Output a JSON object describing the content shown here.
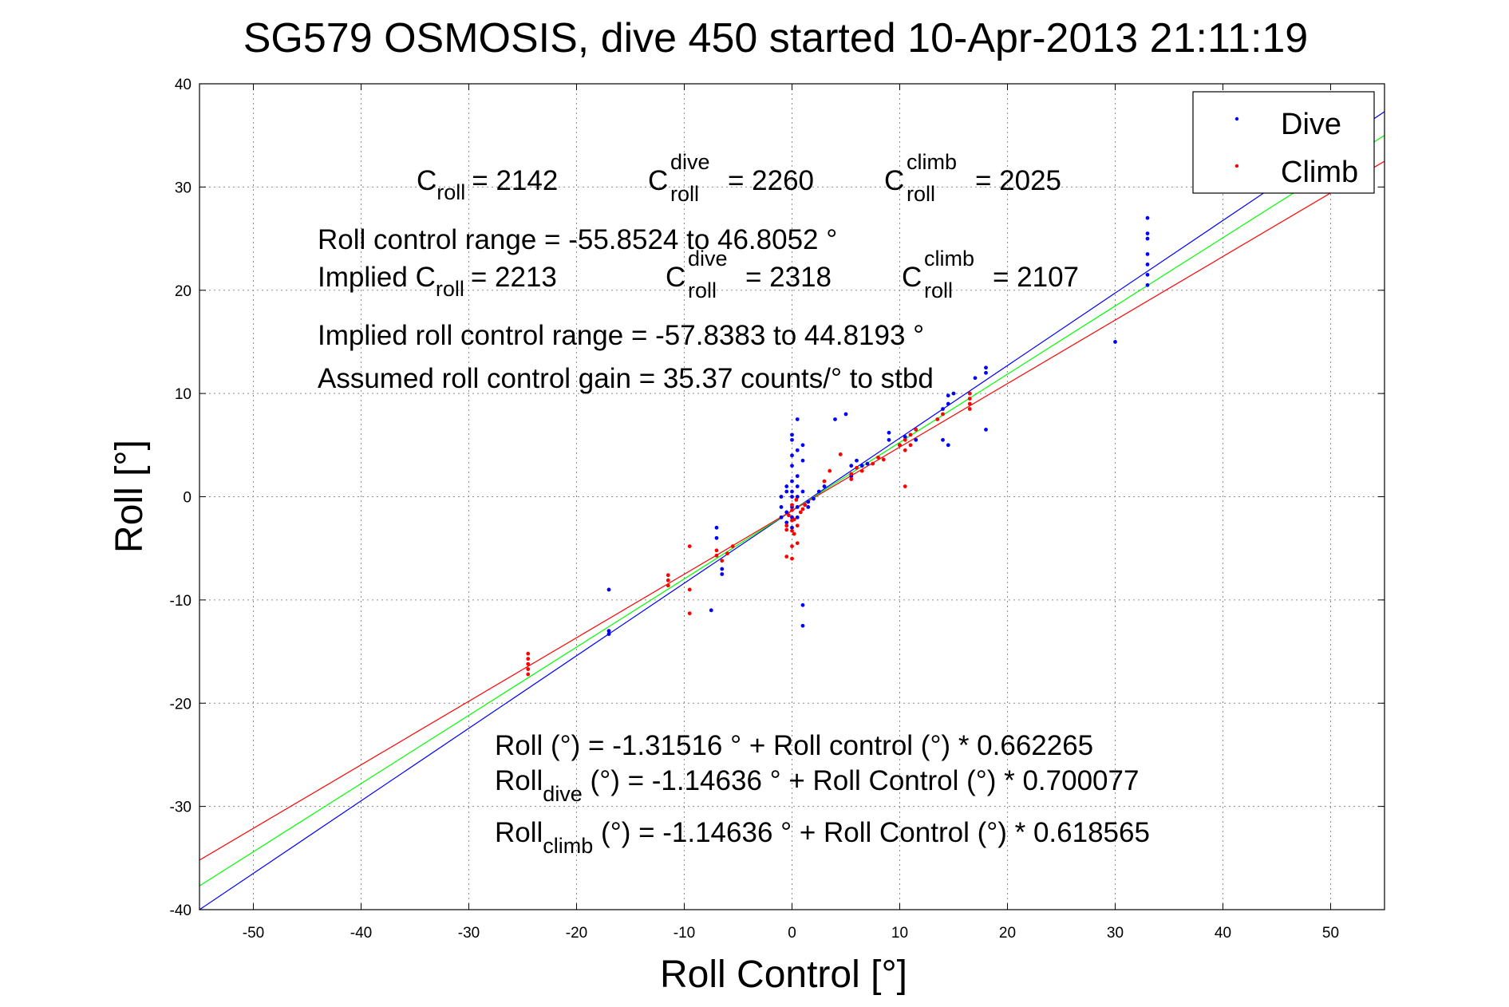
{
  "chart_data": {
    "type": "scatter",
    "title": "SG579 OSMOSIS, dive 450 started 10-Apr-2013 21:11:19",
    "xlabel": "Roll Control [°]",
    "ylabel": "Roll [°]",
    "xlim": [
      -55,
      55
    ],
    "ylim": [
      -40,
      40
    ],
    "xticks": [
      -50,
      -40,
      -30,
      -20,
      -10,
      0,
      10,
      20,
      30,
      40,
      50
    ],
    "yticks": [
      -40,
      -30,
      -20,
      -10,
      0,
      10,
      20,
      30,
      40
    ],
    "xtick_labels": [
      "-50",
      "-40",
      "-30",
      "-20",
      "-10",
      "0",
      "10",
      "20",
      "30",
      "40",
      "50"
    ],
    "ytick_labels": [
      "-40",
      "-30",
      "-20",
      "-10",
      "0",
      "10",
      "20",
      "30",
      "40"
    ],
    "grid": true,
    "legend_position": "top-right",
    "legend": [
      {
        "label": "Dive",
        "color": "#0000ff",
        "marker": "dot"
      },
      {
        "label": "Climb",
        "color": "#ff0000",
        "marker": "dot"
      }
    ],
    "series": [
      {
        "name": "Dive",
        "color": "#0000ff",
        "points": [
          [
            -17,
            -9
          ],
          [
            -17,
            -13
          ],
          [
            -17,
            -13.3
          ],
          [
            -7.5,
            -11
          ],
          [
            -7,
            -3
          ],
          [
            -7,
            -4
          ],
          [
            -6.5,
            -7
          ],
          [
            -6.5,
            -7.5
          ],
          [
            -1,
            -2
          ],
          [
            -1,
            -1
          ],
          [
            -1,
            0
          ],
          [
            -0.5,
            -1.5
          ],
          [
            -0.5,
            -2.5
          ],
          [
            -0.5,
            0.5
          ],
          [
            -0.5,
            1
          ],
          [
            0,
            -3
          ],
          [
            0,
            -2
          ],
          [
            0,
            -1
          ],
          [
            0,
            0
          ],
          [
            0,
            0.5
          ],
          [
            0,
            1.5
          ],
          [
            0,
            3
          ],
          [
            0,
            4
          ],
          [
            0,
            5.5
          ],
          [
            0,
            6
          ],
          [
            0.5,
            -2
          ],
          [
            0.5,
            -1
          ],
          [
            0.5,
            0
          ],
          [
            0.5,
            1
          ],
          [
            0.5,
            2
          ],
          [
            0.5,
            4.5
          ],
          [
            0.5,
            7.5
          ],
          [
            1,
            -10.5
          ],
          [
            1,
            -12.5
          ],
          [
            1,
            3.5
          ],
          [
            1,
            5
          ],
          [
            1,
            0.5
          ],
          [
            1.5,
            -1
          ],
          [
            1.5,
            -0.5
          ],
          [
            2,
            -0.2
          ],
          [
            2.5,
            0.5
          ],
          [
            3,
            1
          ],
          [
            4,
            7.5
          ],
          [
            5,
            8
          ],
          [
            5.5,
            3
          ],
          [
            5.5,
            2
          ],
          [
            6,
            3.5
          ],
          [
            6.5,
            3
          ],
          [
            7,
            3.2
          ],
          [
            9,
            5.5
          ],
          [
            9,
            6.2
          ],
          [
            10,
            5
          ],
          [
            10.5,
            5.8
          ],
          [
            11.5,
            5.5
          ],
          [
            14,
            5.5
          ],
          [
            14,
            8.5
          ],
          [
            14.5,
            5
          ],
          [
            14.5,
            9
          ],
          [
            14.5,
            9.8
          ],
          [
            15,
            10
          ],
          [
            17,
            11.5
          ],
          [
            18,
            12
          ],
          [
            18,
            12.5
          ],
          [
            18,
            6.5
          ],
          [
            30,
            15
          ],
          [
            33,
            20.5
          ],
          [
            33,
            21.5
          ],
          [
            33,
            22.5
          ],
          [
            33,
            23.5
          ],
          [
            33,
            25
          ],
          [
            33,
            25.5
          ],
          [
            33,
            27
          ]
        ]
      },
      {
        "name": "Climb",
        "color": "#ff0000",
        "points": [
          [
            -24.5,
            -15.2
          ],
          [
            -24.5,
            -15.7
          ],
          [
            -24.5,
            -16.2
          ],
          [
            -24.5,
            -16.7
          ],
          [
            -24.5,
            -17.2
          ],
          [
            -11.5,
            -7.6
          ],
          [
            -11.5,
            -8.1
          ],
          [
            -11.5,
            -8.6
          ],
          [
            -9.5,
            -4.8
          ],
          [
            -9.5,
            -9
          ],
          [
            -9.5,
            -11.3
          ],
          [
            -7,
            -5.2
          ],
          [
            -7,
            -5.7
          ],
          [
            -6.5,
            -6.2
          ],
          [
            -6,
            -5.5
          ],
          [
            -5.5,
            -4.8
          ],
          [
            -0.5,
            -2.8
          ],
          [
            -0.5,
            -3.2
          ],
          [
            -0.5,
            -5.8
          ],
          [
            -0.3,
            -1.8
          ],
          [
            0,
            -0.8
          ],
          [
            0,
            -1.3
          ],
          [
            0,
            -2.3
          ],
          [
            0,
            -3.3
          ],
          [
            0,
            -4.8
          ],
          [
            0,
            -6
          ],
          [
            0.2,
            -2.2
          ],
          [
            0.2,
            -3.6
          ],
          [
            0.4,
            -0.3
          ],
          [
            0.5,
            -2.8
          ],
          [
            0.5,
            -4.5
          ],
          [
            0.8,
            -1.5
          ],
          [
            1,
            -1.2
          ],
          [
            1.2,
            -0.8
          ],
          [
            3,
            1.5
          ],
          [
            3.5,
            2.5
          ],
          [
            4.5,
            4.1
          ],
          [
            5.5,
            1.7
          ],
          [
            5.5,
            2.2
          ],
          [
            6,
            2.8
          ],
          [
            6.5,
            2.5
          ],
          [
            7.5,
            3.2
          ],
          [
            8,
            3.8
          ],
          [
            8.5,
            3.6
          ],
          [
            10,
            5
          ],
          [
            10.5,
            4.5
          ],
          [
            10.5,
            5.5
          ],
          [
            11,
            5
          ],
          [
            11,
            6
          ],
          [
            10.5,
            1
          ],
          [
            11.5,
            6.5
          ],
          [
            13.5,
            7.5
          ],
          [
            14,
            8
          ],
          [
            16.5,
            8.5
          ],
          [
            16.5,
            9
          ],
          [
            16.5,
            9.5
          ],
          [
            16.5,
            10
          ]
        ]
      }
    ],
    "fit_lines": [
      {
        "color": "#0000ff",
        "x": [
          -55,
          55
        ],
        "y": [
          -40,
          37.3
        ]
      },
      {
        "color": "#00ff00",
        "x": [
          -55,
          55
        ],
        "y": [
          -37.7,
          35
        ]
      },
      {
        "color": "#ff0000",
        "x": [
          -55,
          55
        ],
        "y": [
          -35.2,
          32.5
        ]
      }
    ],
    "annotations": {
      "c_roll": {
        "main": "C",
        "sub": "roll",
        "value": "= 2142"
      },
      "c_roll_dive": {
        "main": "C",
        "sup": "dive",
        "sub": "roll",
        "value": "= 2260"
      },
      "c_roll_climb": {
        "main": "C",
        "sup": "climb",
        "sub": "roll",
        "value": "= 2025"
      },
      "range_line": "Roll control range = -55.8524 to 46.8052 °",
      "implied_prefix": "Implied ",
      "implied_c_roll": {
        "main": "C",
        "sub": "roll",
        "value": "= 2213"
      },
      "implied_c_roll_dive": {
        "main": "C",
        "sup": "dive",
        "sub": "roll",
        "value": "= 2318"
      },
      "implied_c_roll_climb": {
        "main": "C",
        "sup": "climb",
        "sub": "roll",
        "value": "= 2107"
      },
      "implied_range_line": "Implied roll control range = -57.8383 to 44.8193 °",
      "gain_line": "Assumed roll control gain = 35.37 counts/° to stbd",
      "eq1": "Roll (°) = -1.31516 ° + Roll control (°) * 0.662265",
      "eq2": {
        "main": "Roll",
        "sub": "dive",
        "rest": " (°) = -1.14636 ° + Roll Control (°) * 0.700077"
      },
      "eq3": {
        "main": "Roll",
        "sub": "climb",
        "rest": " (°) = -1.14636 ° + Roll Control (°) * 0.618565"
      }
    }
  }
}
